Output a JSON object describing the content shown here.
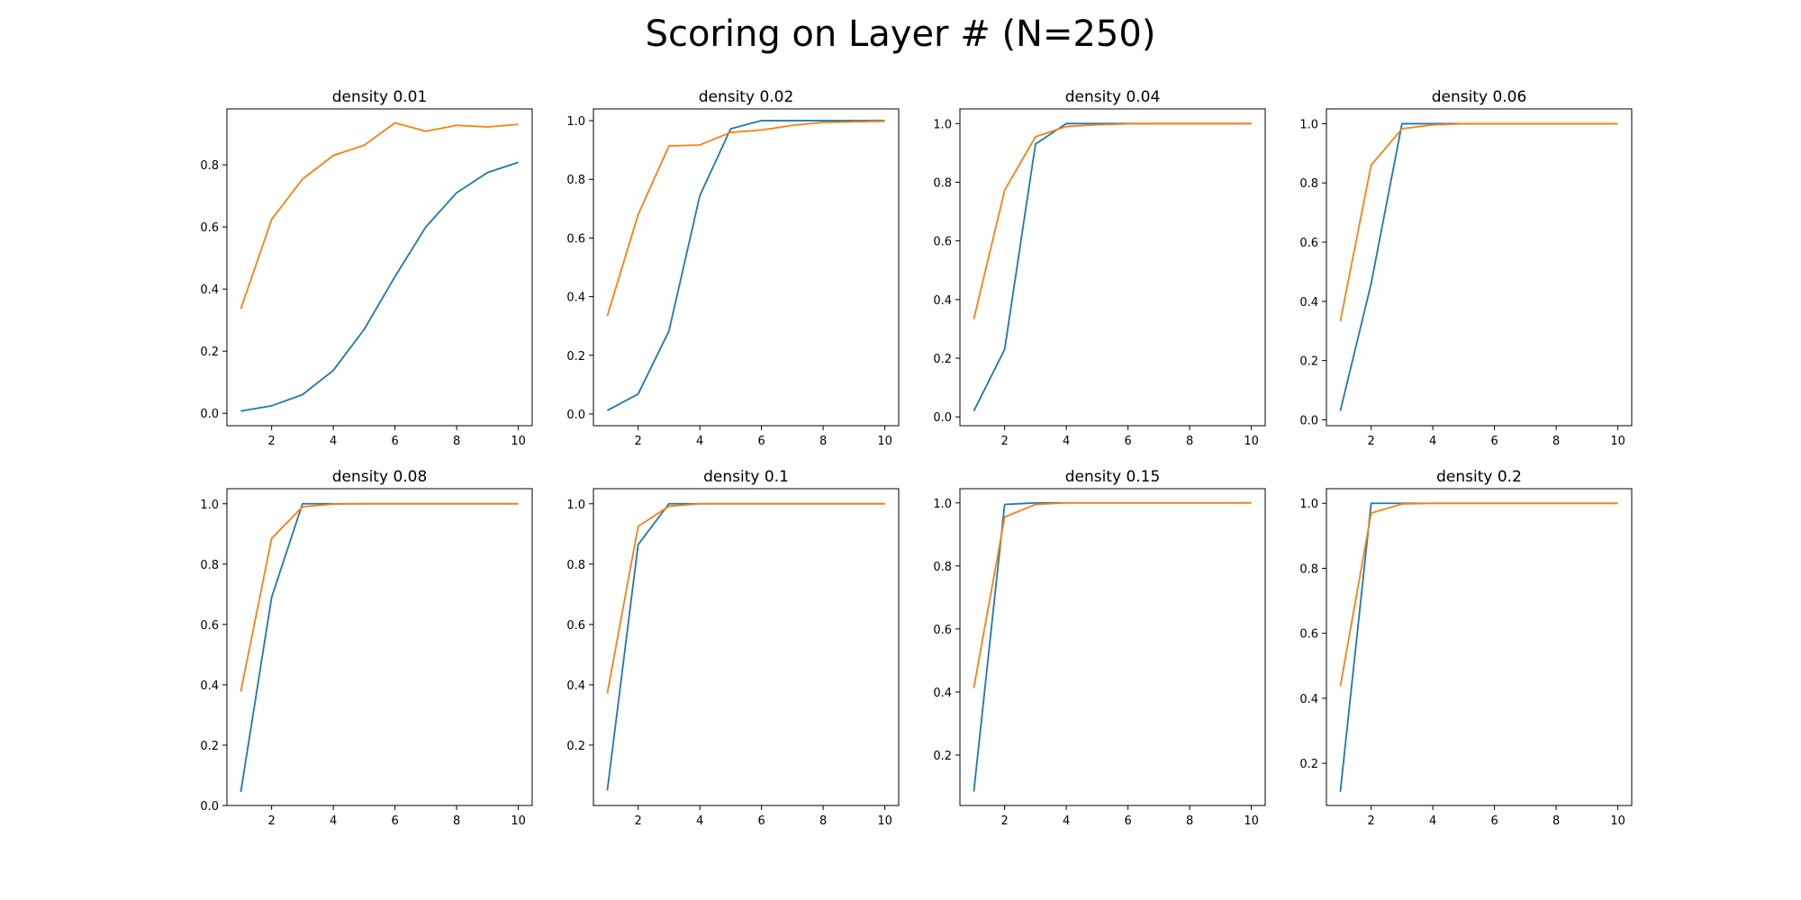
{
  "figure": {
    "title": "Scoring on Layer # (N=250)"
  },
  "colors": {
    "series_0": "#1f77b4",
    "series_1": "#ff7f0e"
  },
  "chart_data": [
    {
      "type": "line",
      "title": "density 0.01",
      "x": [
        1,
        2,
        3,
        4,
        5,
        6,
        7,
        8,
        9,
        10
      ],
      "xticks": [
        2,
        4,
        6,
        8,
        10
      ],
      "xlim": [
        0.55,
        10.45
      ],
      "yticks": [
        0.0,
        0.2,
        0.4,
        0.6,
        0.8
      ],
      "ylim": [
        -0.04,
        0.98
      ],
      "series": [
        {
          "values": [
            0.007,
            0.024,
            0.06,
            0.138,
            0.27,
            0.44,
            0.6,
            0.71,
            0.775,
            0.808
          ]
        },
        {
          "values": [
            0.336,
            0.624,
            0.754,
            0.83,
            0.863,
            0.935,
            0.908,
            0.927,
            0.922,
            0.93
          ]
        }
      ]
    },
    {
      "type": "line",
      "title": "density 0.02",
      "x": [
        1,
        2,
        3,
        4,
        5,
        6,
        7,
        8,
        9,
        10
      ],
      "xticks": [
        2,
        4,
        6,
        8,
        10
      ],
      "xlim": [
        0.55,
        10.45
      ],
      "yticks": [
        0.0,
        0.2,
        0.4,
        0.6,
        0.8,
        1.0
      ],
      "ylim": [
        -0.04,
        1.04
      ],
      "series": [
        {
          "values": [
            0.012,
            0.068,
            0.283,
            0.744,
            0.972,
            1.0,
            1.0,
            1.0,
            1.0,
            1.0
          ]
        },
        {
          "values": [
            0.334,
            0.68,
            0.914,
            0.917,
            0.96,
            0.968,
            0.984,
            0.994,
            0.996,
            0.998
          ]
        }
      ]
    },
    {
      "type": "line",
      "title": "density 0.04",
      "x": [
        1,
        2,
        3,
        4,
        5,
        6,
        7,
        8,
        9,
        10
      ],
      "xticks": [
        2,
        4,
        6,
        8,
        10
      ],
      "xlim": [
        0.55,
        10.45
      ],
      "yticks": [
        0.0,
        0.2,
        0.4,
        0.6,
        0.8,
        1.0
      ],
      "ylim": [
        -0.03,
        1.05
      ],
      "series": [
        {
          "values": [
            0.02,
            0.23,
            0.93,
            1.0,
            1.0,
            1.0,
            1.0,
            1.0,
            1.0,
            1.0
          ]
        },
        {
          "values": [
            0.333,
            0.773,
            0.955,
            0.99,
            0.996,
            0.999,
            1.0,
            1.0,
            1.0,
            1.0
          ]
        }
      ]
    },
    {
      "type": "line",
      "title": "density 0.06",
      "x": [
        1,
        2,
        3,
        4,
        5,
        6,
        7,
        8,
        9,
        10
      ],
      "xticks": [
        2,
        4,
        6,
        8,
        10
      ],
      "xlim": [
        0.55,
        10.45
      ],
      "yticks": [
        0.0,
        0.2,
        0.4,
        0.6,
        0.8,
        1.0
      ],
      "ylim": [
        -0.02,
        1.05
      ],
      "series": [
        {
          "values": [
            0.03,
            0.46,
            1.0,
            1.0,
            1.0,
            1.0,
            1.0,
            1.0,
            1.0,
            1.0
          ]
        },
        {
          "values": [
            0.333,
            0.86,
            0.983,
            0.996,
            1.0,
            1.0,
            1.0,
            1.0,
            1.0,
            1.0
          ]
        }
      ]
    },
    {
      "type": "line",
      "title": "density 0.08",
      "x": [
        1,
        2,
        3,
        4,
        5,
        6,
        7,
        8,
        9,
        10
      ],
      "xticks": [
        2,
        4,
        6,
        8,
        10
      ],
      "xlim": [
        0.55,
        10.45
      ],
      "yticks": [
        0.0,
        0.2,
        0.4,
        0.6,
        0.8,
        1.0
      ],
      "ylim": [
        0.0,
        1.05
      ],
      "series": [
        {
          "values": [
            0.045,
            0.69,
            1.0,
            1.0,
            1.0,
            1.0,
            1.0,
            1.0,
            1.0,
            1.0
          ]
        },
        {
          "values": [
            0.378,
            0.885,
            0.99,
            0.999,
            1.0,
            1.0,
            1.0,
            1.0,
            1.0,
            1.0
          ]
        }
      ]
    },
    {
      "type": "line",
      "title": "density 0.1",
      "x": [
        1,
        2,
        3,
        4,
        5,
        6,
        7,
        8,
        9,
        10
      ],
      "xticks": [
        2,
        4,
        6,
        8,
        10
      ],
      "xlim": [
        0.55,
        10.45
      ],
      "yticks": [
        0.2,
        0.4,
        0.6,
        0.8,
        1.0
      ],
      "ylim": [
        0.0,
        1.05
      ],
      "series": [
        {
          "values": [
            0.05,
            0.865,
            1.0,
            1.0,
            1.0,
            1.0,
            1.0,
            1.0,
            1.0,
            1.0
          ]
        },
        {
          "values": [
            0.372,
            0.925,
            0.992,
            1.0,
            1.0,
            1.0,
            1.0,
            1.0,
            1.0,
            1.0
          ]
        }
      ]
    },
    {
      "type": "line",
      "title": "density 0.15",
      "x": [
        1,
        2,
        3,
        4,
        5,
        6,
        7,
        8,
        9,
        10
      ],
      "xticks": [
        2,
        4,
        6,
        8,
        10
      ],
      "xlim": [
        0.55,
        10.45
      ],
      "yticks": [
        0.2,
        0.4,
        0.6,
        0.8,
        1.0
      ],
      "ylim": [
        0.04,
        1.045
      ],
      "series": [
        {
          "values": [
            0.084,
            0.995,
            1.0,
            1.0,
            1.0,
            1.0,
            1.0,
            1.0,
            1.0,
            1.0
          ]
        },
        {
          "values": [
            0.413,
            0.955,
            0.995,
            1.0,
            1.0,
            1.0,
            1.0,
            1.0,
            1.0,
            1.0
          ]
        }
      ]
    },
    {
      "type": "line",
      "title": "density 0.2",
      "x": [
        1,
        2,
        3,
        4,
        5,
        6,
        7,
        8,
        9,
        10
      ],
      "xticks": [
        2,
        4,
        6,
        8,
        10
      ],
      "xlim": [
        0.55,
        10.45
      ],
      "yticks": [
        0.2,
        0.4,
        0.6,
        0.8,
        1.0
      ],
      "ylim": [
        0.07,
        1.045
      ],
      "series": [
        {
          "values": [
            0.112,
            1.0,
            1.0,
            1.0,
            1.0,
            1.0,
            1.0,
            1.0,
            1.0,
            1.0
          ]
        },
        {
          "values": [
            0.437,
            0.97,
            0.998,
            1.0,
            1.0,
            1.0,
            1.0,
            1.0,
            1.0,
            1.0
          ]
        }
      ]
    }
  ]
}
